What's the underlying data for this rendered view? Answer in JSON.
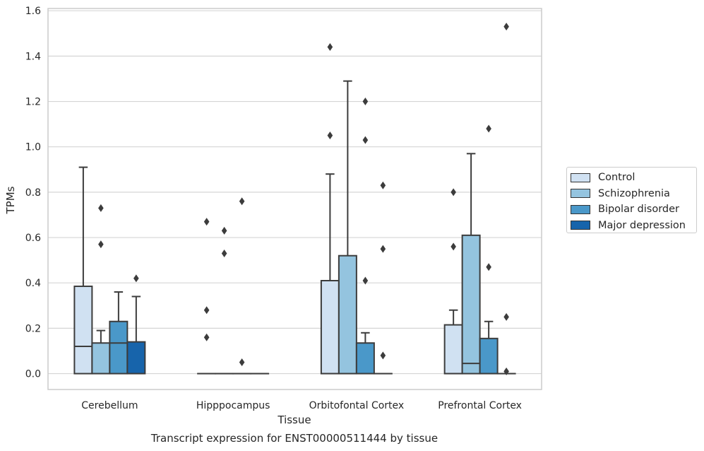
{
  "chart_data": {
    "type": "box",
    "title": "Transcript expression for ENST00000511444 by tissue",
    "xlabel": "Tissue",
    "ylabel": "TPMs",
    "ylim": [
      -0.07,
      1.61
    ],
    "yticks": [
      0.0,
      0.2,
      0.4,
      0.6,
      0.8,
      1.0,
      1.2,
      1.4,
      1.6
    ],
    "ytick_labels": [
      "0.0",
      "0.2",
      "0.4",
      "0.6",
      "0.8",
      "1.0",
      "1.2",
      "1.4",
      "1.6"
    ],
    "categories": [
      "Cerebellum",
      "Hipppocampus",
      "Orbitofontal Cortex",
      "Prefrontal Cortex"
    ],
    "grid": true,
    "legend_position": "right",
    "series": [
      {
        "name": "Control",
        "color": "#d0e1f2",
        "boxes": [
          {
            "q1": 0.0,
            "median": 0.12,
            "q3": 0.385,
            "whisker_low": 0.0,
            "whisker_high": 0.91,
            "outliers": []
          },
          {
            "q1": 0.0,
            "median": 0.0,
            "q3": 0.0,
            "whisker_low": 0.0,
            "whisker_high": 0.0,
            "outliers": [
              0.67,
              0.28,
              0.16
            ]
          },
          {
            "q1": 0.0,
            "median": 0.0,
            "q3": 0.41,
            "whisker_low": 0.0,
            "whisker_high": 0.88,
            "outliers": [
              1.44,
              1.05
            ]
          },
          {
            "q1": 0.0,
            "median": 0.0,
            "q3": 0.215,
            "whisker_low": 0.0,
            "whisker_high": 0.28,
            "outliers": [
              0.8,
              0.56
            ]
          }
        ]
      },
      {
        "name": "Schizophrenia",
        "color": "#94c4df",
        "boxes": [
          {
            "q1": 0.0,
            "median": 0.0,
            "q3": 0.135,
            "whisker_low": 0.0,
            "whisker_high": 0.19,
            "outliers": [
              0.73,
              0.57
            ]
          },
          {
            "q1": 0.0,
            "median": 0.0,
            "q3": 0.0,
            "whisker_low": 0.0,
            "whisker_high": 0.0,
            "outliers": [
              0.63,
              0.53
            ]
          },
          {
            "q1": 0.0,
            "median": 0.0,
            "q3": 0.52,
            "whisker_low": 0.0,
            "whisker_high": 1.29,
            "outliers": []
          },
          {
            "q1": 0.0,
            "median": 0.045,
            "q3": 0.61,
            "whisker_low": 0.0,
            "whisker_high": 0.97,
            "outliers": []
          }
        ]
      },
      {
        "name": "Bipolar disorder",
        "color": "#4a98c9",
        "boxes": [
          {
            "q1": 0.0,
            "median": 0.135,
            "q3": 0.23,
            "whisker_low": 0.0,
            "whisker_high": 0.36,
            "outliers": []
          },
          {
            "q1": 0.0,
            "median": 0.0,
            "q3": 0.0,
            "whisker_low": 0.0,
            "whisker_high": 0.0,
            "outliers": [
              0.76,
              0.05
            ]
          },
          {
            "q1": 0.0,
            "median": 0.0,
            "q3": 0.135,
            "whisker_low": 0.0,
            "whisker_high": 0.18,
            "outliers": [
              1.2,
              1.03,
              0.41
            ]
          },
          {
            "q1": 0.0,
            "median": 0.0,
            "q3": 0.155,
            "whisker_low": 0.0,
            "whisker_high": 0.23,
            "outliers": [
              1.08,
              0.47
            ]
          }
        ]
      },
      {
        "name": "Major depression",
        "color": "#1764ab",
        "boxes": [
          {
            "q1": 0.0,
            "median": 0.0,
            "q3": 0.14,
            "whisker_low": 0.0,
            "whisker_high": 0.34,
            "outliers": [
              0.42
            ]
          },
          {
            "q1": 0.0,
            "median": 0.0,
            "q3": 0.0,
            "whisker_low": 0.0,
            "whisker_high": 0.0,
            "outliers": []
          },
          {
            "q1": 0.0,
            "median": 0.0,
            "q3": 0.0,
            "whisker_low": 0.0,
            "whisker_high": 0.0,
            "outliers": [
              0.83,
              0.55,
              0.08
            ]
          },
          {
            "q1": 0.0,
            "median": 0.0,
            "q3": 0.0,
            "whisker_low": 0.0,
            "whisker_high": 0.0,
            "outliers": [
              1.53,
              0.25,
              0.01
            ]
          }
        ]
      }
    ]
  }
}
